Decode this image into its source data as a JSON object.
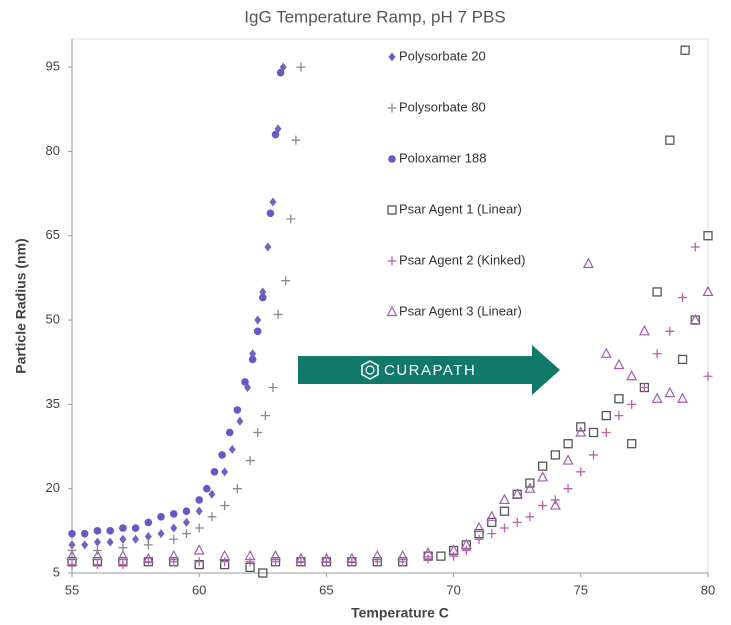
{
  "chart_data": {
    "type": "scatter",
    "title": "IgG Temperature Ramp, pH 7 PBS",
    "x_label": "Temperature C",
    "y_label": "Particle Radius (nm)",
    "annotation": "CURAPATH",
    "xlim": [
      55,
      80
    ],
    "xticks": [
      55,
      60,
      65,
      70,
      75,
      80
    ],
    "ylim": [
      5,
      100
    ],
    "yticks": [
      5,
      20,
      35,
      50,
      65,
      80,
      95
    ],
    "series": [
      {
        "name": "Polysorbate 20",
        "color": "#7361c2",
        "marker": "diamond",
        "x": [
          55,
          55.5,
          56,
          56.5,
          57,
          57.5,
          58,
          58.5,
          59,
          59.5,
          60,
          60.5,
          61,
          61.3,
          61.6,
          61.9,
          62.1,
          62.3,
          62.5,
          62.7,
          62.9,
          63.1,
          63.3
        ],
        "values": [
          10,
          10,
          10.5,
          10.5,
          11,
          11,
          11.5,
          12,
          13,
          14,
          16,
          19,
          23,
          27,
          32,
          38,
          44,
          50,
          55,
          63,
          71,
          84,
          95
        ]
      },
      {
        "name": "Polysorbate 80",
        "color": "#8a8a8a",
        "marker": "plus",
        "x": [
          55,
          56,
          57,
          58,
          59,
          59.5,
          60,
          60.5,
          61,
          61.5,
          62,
          62.3,
          62.6,
          62.9,
          63.1,
          63.4,
          63.6,
          63.8,
          64
        ],
        "values": [
          9,
          9,
          9.5,
          10,
          11,
          12,
          13,
          15,
          17,
          20,
          25,
          30,
          33,
          38,
          51,
          57,
          68,
          82,
          95
        ]
      },
      {
        "name": "Poloxamer 188",
        "color": "#6a56c4",
        "marker": "circle",
        "x": [
          55,
          55.5,
          56,
          56.5,
          57,
          57.5,
          58,
          58.5,
          59,
          59.5,
          60,
          60.3,
          60.6,
          60.9,
          61.2,
          61.5,
          61.8,
          62.1,
          62.3,
          62.5,
          62.8,
          63,
          63.2
        ],
        "values": [
          12,
          12,
          12.5,
          12.5,
          13,
          13,
          14,
          15,
          15.5,
          16,
          18,
          20,
          23,
          26,
          30,
          34,
          39,
          43,
          48,
          54,
          69,
          83,
          94
        ]
      },
      {
        "name": "Psar Agent 1 (Linear)",
        "color": "#555555",
        "marker": "square",
        "x": [
          55,
          56,
          57,
          58,
          59,
          60,
          61,
          62,
          62.5,
          63,
          64,
          65,
          66,
          67,
          68,
          69,
          69.5,
          70,
          70.5,
          71,
          71.5,
          72,
          72.5,
          73,
          73.5,
          74,
          74.5,
          75,
          75.5,
          76,
          76.5,
          77,
          77.5,
          78,
          78.5,
          79,
          79.1,
          79.5,
          80
        ],
        "values": [
          7,
          7,
          7,
          7,
          7,
          6.5,
          6.5,
          6,
          5,
          7,
          7,
          7,
          7,
          7,
          7,
          8,
          8,
          9,
          10,
          12,
          14,
          16,
          19,
          21,
          24,
          26,
          28,
          31,
          30,
          33,
          36,
          28,
          38,
          55,
          82,
          43,
          98,
          50,
          65
        ]
      },
      {
        "name": "Psar Agent 2 (Kinked)",
        "color": "#b862a8",
        "marker": "plus",
        "x": [
          55,
          56,
          57,
          58,
          59,
          60,
          61,
          62,
          63,
          64,
          65,
          66,
          67,
          68,
          69,
          70,
          70.5,
          71,
          71.5,
          72,
          72.5,
          73,
          73.5,
          74,
          74.5,
          75,
          75.5,
          76,
          76.5,
          77,
          77.5,
          78,
          78.5,
          79,
          79.5,
          80
        ],
        "values": [
          6.5,
          6.5,
          6.5,
          7,
          7,
          7,
          7,
          7,
          7,
          7,
          7,
          7,
          7,
          7,
          7.5,
          8,
          9,
          11,
          12,
          13,
          14,
          15,
          17,
          18,
          20,
          23,
          26,
          30,
          33,
          35,
          38,
          44,
          48,
          54,
          63,
          40
        ]
      },
      {
        "name": "Psar Agent 3 (Linear)",
        "color": "#a35cb3",
        "marker": "triangle",
        "x": [
          55,
          56,
          57,
          58,
          59,
          60,
          61,
          62,
          63,
          64,
          65,
          66,
          67,
          68,
          69,
          70,
          70.5,
          71,
          71.5,
          72,
          72.5,
          73,
          73.5,
          74,
          74.5,
          75,
          75.3,
          76,
          76.5,
          77,
          77.5,
          78,
          78.5,
          79,
          79.5,
          80
        ],
        "values": [
          8,
          8,
          8,
          7.5,
          8,
          9,
          8,
          8,
          8,
          7.5,
          7.5,
          7.5,
          8,
          8,
          8.5,
          9,
          10,
          13,
          15,
          18,
          19,
          20,
          22,
          17,
          25,
          30,
          60,
          44,
          42,
          40,
          48,
          36,
          37,
          36,
          50,
          55
        ]
      }
    ]
  }
}
